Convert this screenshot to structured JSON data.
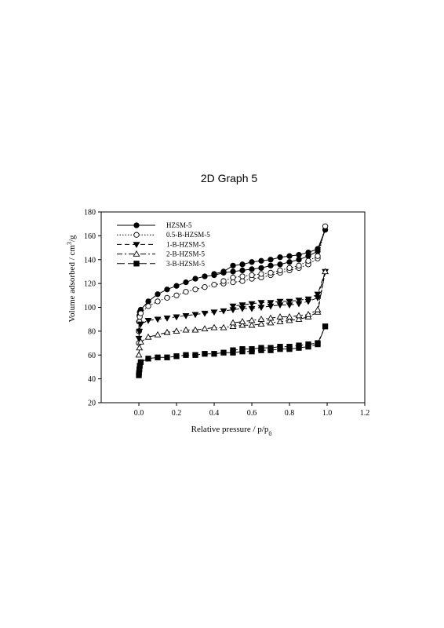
{
  "chart_data": {
    "type": "scatter",
    "title": "2D Graph 5",
    "xlabel": {
      "main": "Relative pressure / p/p",
      "sub": "0"
    },
    "ylabel": {
      "main": "Volume adsorbed / cm",
      "sup": "3",
      "tail": "/g"
    },
    "xlim": [
      -0.2,
      1.2
    ],
    "ylim": [
      20,
      180
    ],
    "x_ticks": [
      0.0,
      0.2,
      0.4,
      0.6,
      0.8,
      1.0,
      1.2
    ],
    "x_tick_labels": [
      "0.0",
      "0.2",
      "0.4",
      "0.6",
      "0.8",
      "1.0",
      "1.2"
    ],
    "y_ticks": [
      20,
      40,
      60,
      80,
      100,
      120,
      140,
      160,
      180
    ],
    "y_tick_labels": [
      "20",
      "40",
      "60",
      "80",
      "100",
      "120",
      "140",
      "160",
      "180"
    ],
    "grid": false,
    "legend_position": "top-left",
    "series": [
      {
        "name": "HZSM-5",
        "marker": "circle-filled",
        "line": "solid",
        "adsorption": [
          [
            0.0,
            80
          ],
          [
            0.001,
            88
          ],
          [
            0.003,
            93
          ],
          [
            0.005,
            96
          ],
          [
            0.01,
            98
          ],
          [
            0.05,
            105
          ],
          [
            0.1,
            111
          ],
          [
            0.15,
            115
          ],
          [
            0.2,
            118
          ],
          [
            0.25,
            121
          ],
          [
            0.3,
            124
          ],
          [
            0.35,
            126
          ],
          [
            0.4,
            127
          ],
          [
            0.45,
            129
          ],
          [
            0.5,
            130
          ],
          [
            0.55,
            131
          ],
          [
            0.6,
            132
          ],
          [
            0.65,
            133
          ],
          [
            0.7,
            135
          ],
          [
            0.75,
            136
          ],
          [
            0.8,
            138
          ],
          [
            0.85,
            140
          ],
          [
            0.9,
            143
          ],
          [
            0.95,
            147
          ],
          [
            0.99,
            165
          ]
        ],
        "desorption": [
          [
            0.95,
            149
          ],
          [
            0.9,
            146
          ],
          [
            0.85,
            144
          ],
          [
            0.8,
            143
          ],
          [
            0.75,
            142
          ],
          [
            0.7,
            140
          ],
          [
            0.65,
            139
          ],
          [
            0.6,
            138
          ],
          [
            0.55,
            136
          ],
          [
            0.5,
            135
          ],
          [
            0.45,
            130
          ],
          [
            0.4,
            128
          ]
        ]
      },
      {
        "name": "0.5-B-HZSM-5",
        "marker": "circle-open",
        "line": "dotted",
        "adsorption": [
          [
            0.0,
            70
          ],
          [
            0.001,
            80
          ],
          [
            0.003,
            88
          ],
          [
            0.005,
            92
          ],
          [
            0.01,
            95
          ],
          [
            0.05,
            101
          ],
          [
            0.1,
            105
          ],
          [
            0.15,
            108
          ],
          [
            0.2,
            110
          ],
          [
            0.25,
            113
          ],
          [
            0.3,
            115
          ],
          [
            0.35,
            117
          ],
          [
            0.4,
            119
          ],
          [
            0.45,
            120
          ],
          [
            0.5,
            121
          ],
          [
            0.55,
            122
          ],
          [
            0.6,
            124
          ],
          [
            0.65,
            125
          ],
          [
            0.7,
            127
          ],
          [
            0.75,
            129
          ],
          [
            0.8,
            131
          ],
          [
            0.85,
            133
          ],
          [
            0.9,
            136
          ],
          [
            0.95,
            141
          ],
          [
            0.99,
            168
          ]
        ],
        "desorption": [
          [
            0.95,
            143
          ],
          [
            0.9,
            139
          ],
          [
            0.85,
            135
          ],
          [
            0.8,
            133
          ],
          [
            0.75,
            131
          ],
          [
            0.7,
            129
          ],
          [
            0.65,
            128
          ],
          [
            0.6,
            127
          ],
          [
            0.55,
            126
          ],
          [
            0.5,
            125
          ],
          [
            0.45,
            122
          ]
        ]
      },
      {
        "name": "1-B-HZSM-5",
        "marker": "triangle-down-filled",
        "line": "dashed",
        "adsorption": [
          [
            0.0,
            74
          ],
          [
            0.003,
            80
          ],
          [
            0.01,
            86
          ],
          [
            0.05,
            89
          ],
          [
            0.1,
            90
          ],
          [
            0.15,
            91
          ],
          [
            0.2,
            92
          ],
          [
            0.25,
            93
          ],
          [
            0.3,
            94
          ],
          [
            0.35,
            95
          ],
          [
            0.4,
            96
          ],
          [
            0.45,
            97
          ],
          [
            0.5,
            98
          ],
          [
            0.55,
            99
          ],
          [
            0.6,
            99
          ],
          [
            0.65,
            100
          ],
          [
            0.7,
            101
          ],
          [
            0.75,
            102
          ],
          [
            0.8,
            102
          ],
          [
            0.85,
            103
          ],
          [
            0.9,
            105
          ],
          [
            0.95,
            108
          ],
          [
            0.99,
            130
          ]
        ],
        "desorption": [
          [
            0.95,
            111
          ],
          [
            0.9,
            107
          ],
          [
            0.85,
            106
          ],
          [
            0.8,
            105
          ],
          [
            0.75,
            105
          ],
          [
            0.7,
            104
          ],
          [
            0.65,
            104
          ],
          [
            0.6,
            103
          ],
          [
            0.55,
            102
          ],
          [
            0.5,
            101
          ]
        ]
      },
      {
        "name": "2-B-HZSM-5",
        "marker": "triangle-up-open",
        "line": "dash-dot",
        "adsorption": [
          [
            0.0,
            60
          ],
          [
            0.003,
            66
          ],
          [
            0.01,
            71
          ],
          [
            0.05,
            75
          ],
          [
            0.1,
            77
          ],
          [
            0.15,
            79
          ],
          [
            0.2,
            80
          ],
          [
            0.25,
            81
          ],
          [
            0.3,
            81
          ],
          [
            0.35,
            82
          ],
          [
            0.4,
            83
          ],
          [
            0.45,
            83
          ],
          [
            0.5,
            84
          ],
          [
            0.55,
            85
          ],
          [
            0.6,
            85
          ],
          [
            0.65,
            86
          ],
          [
            0.7,
            87
          ],
          [
            0.75,
            88
          ],
          [
            0.8,
            89
          ],
          [
            0.85,
            90
          ],
          [
            0.9,
            92
          ],
          [
            0.95,
            96
          ],
          [
            0.99,
            130
          ]
        ],
        "desorption": [
          [
            0.95,
            98
          ],
          [
            0.9,
            94
          ],
          [
            0.85,
            93
          ],
          [
            0.8,
            92
          ],
          [
            0.75,
            92
          ],
          [
            0.7,
            91
          ],
          [
            0.65,
            90
          ],
          [
            0.6,
            89
          ],
          [
            0.55,
            88
          ],
          [
            0.5,
            87
          ]
        ]
      },
      {
        "name": "3-B-HZSM-5",
        "marker": "square-filled",
        "line": "long-dash",
        "adsorption": [
          [
            0.0,
            43
          ],
          [
            0.001,
            45
          ],
          [
            0.003,
            48
          ],
          [
            0.005,
            51
          ],
          [
            0.01,
            54
          ],
          [
            0.05,
            57
          ],
          [
            0.1,
            58
          ],
          [
            0.15,
            58
          ],
          [
            0.2,
            59
          ],
          [
            0.25,
            60
          ],
          [
            0.3,
            60
          ],
          [
            0.35,
            61
          ],
          [
            0.4,
            61
          ],
          [
            0.45,
            62
          ],
          [
            0.5,
            62
          ],
          [
            0.55,
            63
          ],
          [
            0.6,
            63
          ],
          [
            0.65,
            64
          ],
          [
            0.7,
            64
          ],
          [
            0.75,
            65
          ],
          [
            0.8,
            65
          ],
          [
            0.85,
            66
          ],
          [
            0.9,
            67
          ],
          [
            0.95,
            69
          ],
          [
            0.99,
            84
          ]
        ],
        "desorption": [
          [
            0.95,
            70
          ],
          [
            0.9,
            69
          ],
          [
            0.85,
            68
          ],
          [
            0.8,
            67
          ],
          [
            0.75,
            67
          ],
          [
            0.7,
            66
          ],
          [
            0.65,
            66
          ],
          [
            0.6,
            65
          ],
          [
            0.55,
            65
          ],
          [
            0.5,
            64
          ]
        ]
      }
    ]
  }
}
